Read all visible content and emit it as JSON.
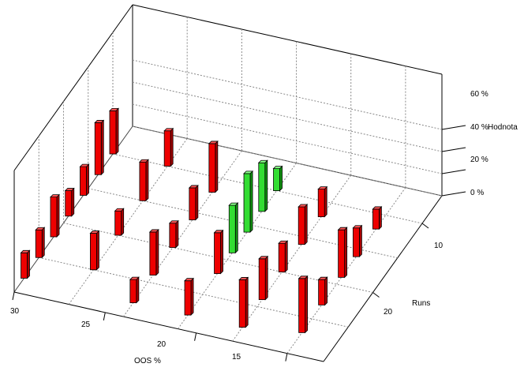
{
  "chart_data": {
    "type": "bar3d",
    "title": "",
    "xlabel": "OOS %",
    "ylabel": "Runs",
    "zlabel": "Hodnota",
    "x_ticks": [
      "30",
      "25",
      "20",
      "15"
    ],
    "y_ticks": [
      "10",
      "20"
    ],
    "z_ticks": [
      "0 %",
      "20 %",
      "40 %",
      "60 %"
    ],
    "zlim": [
      0,
      60
    ],
    "grid": true,
    "colors": {
      "default": "#ee0000",
      "highlight": "#33dd33"
    },
    "bars": [
      {
        "oos": 30,
        "runs": 2,
        "value": 23,
        "color": "red"
      },
      {
        "oos": 30,
        "runs": 5,
        "value": 25,
        "color": "red"
      },
      {
        "oos": 30,
        "runs": 8,
        "value": 36,
        "color": "red"
      },
      {
        "oos": 30,
        "runs": 11,
        "value": 23,
        "color": "red"
      },
      {
        "oos": 30,
        "runs": 14,
        "value": 26,
        "color": "red"
      },
      {
        "oos": 30,
        "runs": 17,
        "value": 47,
        "color": "red"
      },
      {
        "oos": 30,
        "runs": 20,
        "value": 39,
        "color": "red"
      },
      {
        "oos": 27,
        "runs": 5,
        "value": 33,
        "color": "red"
      },
      {
        "oos": 27,
        "runs": 10,
        "value": 22,
        "color": "red"
      },
      {
        "oos": 27,
        "runs": 15,
        "value": 35,
        "color": "red"
      },
      {
        "oos": 27,
        "runs": 20,
        "value": 32,
        "color": "red"
      },
      {
        "oos": 24,
        "runs": 2,
        "value": 21,
        "color": "red"
      },
      {
        "oos": 24,
        "runs": 6,
        "value": 39,
        "color": "red"
      },
      {
        "oos": 24,
        "runs": 10,
        "value": 22,
        "color": "red"
      },
      {
        "oos": 24,
        "runs": 14,
        "value": 29,
        "color": "red"
      },
      {
        "oos": 24,
        "runs": 18,
        "value": 44,
        "color": "red"
      },
      {
        "oos": 21,
        "runs": 2,
        "value": 31,
        "color": "red"
      },
      {
        "oos": 21,
        "runs": 8,
        "value": 37,
        "color": "red"
      },
      {
        "oos": 21,
        "runs": 11,
        "value": 43,
        "color": "green"
      },
      {
        "oos": 21,
        "runs": 14,
        "value": 53,
        "color": "green"
      },
      {
        "oos": 21,
        "runs": 17,
        "value": 44,
        "color": "green"
      },
      {
        "oos": 21,
        "runs": 20,
        "value": 20,
        "color": "green"
      },
      {
        "oos": 18,
        "runs": 2,
        "value": 43,
        "color": "red"
      },
      {
        "oos": 18,
        "runs": 6,
        "value": 37,
        "color": "red"
      },
      {
        "oos": 18,
        "runs": 10,
        "value": 26,
        "color": "red"
      },
      {
        "oos": 18,
        "runs": 14,
        "value": 34,
        "color": "red"
      },
      {
        "oos": 18,
        "runs": 18,
        "value": 25,
        "color": "red"
      },
      {
        "oos": 15,
        "runs": 3,
        "value": 49,
        "color": "red"
      },
      {
        "oos": 15,
        "runs": 7,
        "value": 23,
        "color": "red"
      },
      {
        "oos": 15,
        "runs": 11,
        "value": 43,
        "color": "red"
      },
      {
        "oos": 15,
        "runs": 14,
        "value": 26,
        "color": "red"
      },
      {
        "oos": 15,
        "runs": 18,
        "value": 18,
        "color": "red"
      }
    ]
  }
}
